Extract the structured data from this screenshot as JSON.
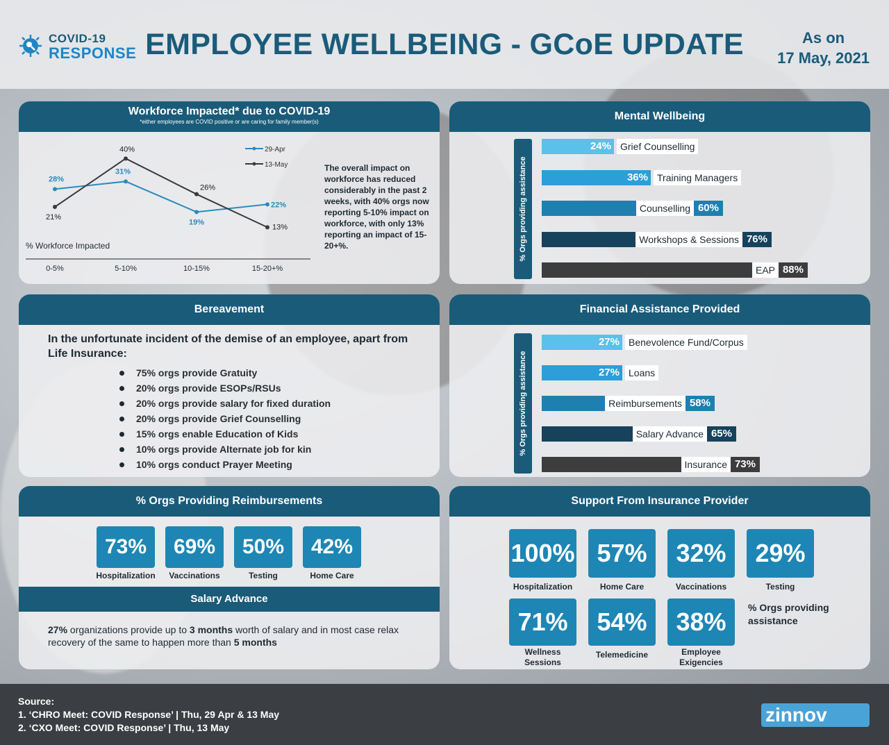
{
  "header": {
    "logo_line1": "COVID-19",
    "logo_line2": "RESPONSE",
    "title": "EMPLOYEE WELLBEING - GCoE UPDATE",
    "date_line1": "As on",
    "date_line2": "17 May, 2021"
  },
  "workforce": {
    "title": "Workforce Impacted* due to COVID-19",
    "subtitle": "*either employees are COVID positive or are caring for family member(s)",
    "commentary": "The overall impact on workforce has reduced considerably in the past 2 weeks, with 40% orgs now  reporting 5-10% impact on  workforce, with  only 13% reporting an impact of 15-20+%."
  },
  "chart_data": {
    "type": "line",
    "categories": [
      "0-5%",
      "5-10%",
      "10-15%",
      "15-20+%"
    ],
    "ylabel": "% Workforce Impacted",
    "ylim": [
      0,
      45
    ],
    "series": [
      {
        "name": "29-Apr",
        "values": [
          28,
          31,
          19,
          22
        ],
        "labels": [
          "28%",
          "31%",
          "19%",
          "22%"
        ],
        "color": "#2a8bbd"
      },
      {
        "name": "13-May",
        "values": [
          21,
          40,
          26,
          13
        ],
        "labels": [
          "21%",
          "40%",
          "26%",
          "13%"
        ],
        "color": "#3a3a3a"
      }
    ]
  },
  "mental": {
    "title": "Mental Wellbeing",
    "axis_label": "% Orgs providing assistance",
    "bars": [
      {
        "pct": "24%",
        "label": "Grief Counselling",
        "value": 24,
        "color": "#5bc0ea"
      },
      {
        "pct": "36%",
        "label": "Training Managers",
        "value": 36,
        "color": "#2c9fd9"
      },
      {
        "pct": "60%",
        "label": "Counselling",
        "value": 60,
        "color": "#1f7fb0"
      },
      {
        "pct": "76%",
        "label": "Workshops & Sessions",
        "value": 76,
        "color": "#16425c"
      },
      {
        "pct": "88%",
        "label": "EAP",
        "value": 88,
        "color": "#3d3d3d"
      }
    ]
  },
  "bereavement": {
    "title": "Bereavement",
    "intro": "In the unfortunate incident of the demise of an employee, apart from Life Insurance:",
    "items": [
      "75%  orgs provide Gratuity",
      "20% orgs provide ESOPs/RSUs",
      "20% orgs provide salary for fixed duration",
      "20% orgs provide Grief Counselling",
      "15% orgs enable Education of Kids",
      "10% orgs provide Alternate job for kin",
      "10% orgs conduct Prayer Meeting"
    ]
  },
  "financial": {
    "title": "Financial Assistance Provided",
    "axis_label": "% Orgs providing assistance",
    "bars": [
      {
        "pct": "27%",
        "label": "Benevolence Fund/Corpus",
        "value": 27,
        "color": "#5bc0ea"
      },
      {
        "pct": "27%",
        "label": "Loans",
        "value": 27,
        "color": "#2c9fd9"
      },
      {
        "pct": "58%",
        "label": "Reimbursements",
        "value": 58,
        "color": "#1f7fb0"
      },
      {
        "pct": "65%",
        "label": "Salary Advance",
        "value": 65,
        "color": "#16425c"
      },
      {
        "pct": "73%",
        "label": "Insurance",
        "value": 73,
        "color": "#3d3d3d"
      }
    ]
  },
  "reimbursements": {
    "title": "% Orgs Providing Reimbursements",
    "tiles": [
      {
        "value": "73%",
        "caption": "Hospitalization"
      },
      {
        "value": "69%",
        "caption": "Vaccinations"
      },
      {
        "value": "50%",
        "caption": "Testing"
      },
      {
        "value": "42%",
        "caption": "Home Care"
      }
    ],
    "salary_title": "Salary Advance",
    "salary_p1": "27%",
    "salary_p2": " organizations provide up to ",
    "salary_p3": "3 months",
    "salary_p4": " worth of salary and in most case relax recovery of the same to happen more than ",
    "salary_p5": "5 months"
  },
  "insurance": {
    "title": "Support From Insurance Provider",
    "tiles_row1": [
      {
        "value": "100%",
        "caption": "Hospitalization"
      },
      {
        "value": "57%",
        "caption": "Home Care"
      },
      {
        "value": "32%",
        "caption": "Vaccinations"
      },
      {
        "value": "29%",
        "caption": "Testing"
      }
    ],
    "tiles_row2": [
      {
        "value": "71%",
        "caption_l1": "Wellness",
        "caption_l2": "Sessions"
      },
      {
        "value": "54%",
        "caption_l1": "Telemedicine",
        "caption_l2": ""
      },
      {
        "value": "38%",
        "caption_l1": "Employee",
        "caption_l2": "Exigencies"
      }
    ],
    "note": "% Orgs providing assistance"
  },
  "footer": {
    "source_title": "Source:",
    "source1": "1.  ‘CHRO Meet: COVID Response’ | Thu, 29 Apr & 13 May",
    "source2": "2.  ‘CXO Meet: COVID Response’ | Thu, 13 May",
    "brand": "zinnov"
  }
}
